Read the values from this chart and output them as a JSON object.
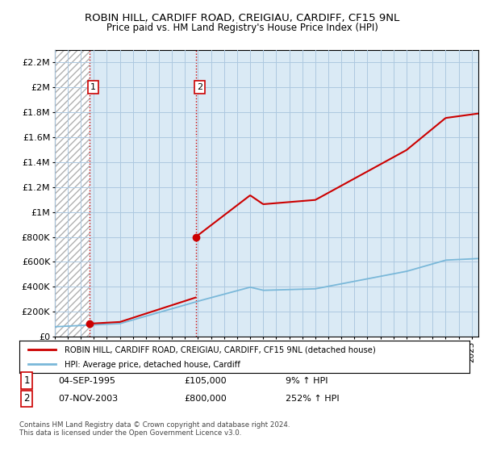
{
  "title1": "ROBIN HILL, CARDIFF ROAD, CREIGIAU, CARDIFF, CF15 9NL",
  "title2": "Price paid vs. HM Land Registry's House Price Index (HPI)",
  "ylabel_ticks": [
    "£0",
    "£200K",
    "£400K",
    "£600K",
    "£800K",
    "£1M",
    "£1.2M",
    "£1.4M",
    "£1.6M",
    "£1.8M",
    "£2M",
    "£2.2M"
  ],
  "ylabel_values": [
    0,
    200000,
    400000,
    600000,
    800000,
    1000000,
    1200000,
    1400000,
    1600000,
    1800000,
    2000000,
    2200000
  ],
  "ylim": [
    0,
    2300000
  ],
  "xlim_start": 1993,
  "xlim_end": 2025.5,
  "purchase1_date": 1995.67,
  "purchase1_price": 105000,
  "purchase2_date": 2003.84,
  "purchase2_price": 800000,
  "hpi_line_color": "#7ab8d9",
  "price_line_color": "#cc0000",
  "grid_color": "#adc8e0",
  "bg_blue": "#daeaf5",
  "legend_line1": "ROBIN HILL, CARDIFF ROAD, CREIGIAU, CARDIFF, CF15 9NL (detached house)",
  "legend_line2": "HPI: Average price, detached house, Cardiff",
  "annotation1_date": "04-SEP-1995",
  "annotation1_price": "£105,000",
  "annotation1_hpi": "9% ↑ HPI",
  "annotation2_date": "07-NOV-2003",
  "annotation2_price": "£800,000",
  "annotation2_hpi": "252% ↑ HPI",
  "footer": "Contains HM Land Registry data © Crown copyright and database right 2024.\nThis data is licensed under the Open Government Licence v3.0."
}
